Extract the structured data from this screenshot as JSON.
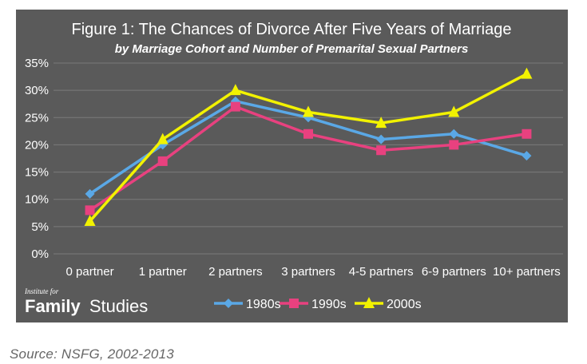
{
  "colors": {
    "background": "#5a5a5a",
    "text": "#ffffff",
    "grid": "#7a7a7a",
    "series_1980s": "#5aa8e6",
    "series_1990s": "#e8417f",
    "series_2000s": "#f2f200"
  },
  "branding": {
    "line1": "Institute for",
    "line2_bold": "Family",
    "line2_regular": "Studies"
  },
  "source": "Source: NSFG, 2002-2013",
  "chart_data": {
    "type": "line",
    "title": "Figure 1: The Chances of Divorce After Five Years of Marriage",
    "subtitle": "by Marriage Cohort and Number of Premarital Sexual Partners",
    "categories": [
      "0 partner",
      "1 partner",
      "2 partners",
      "3 partners",
      "4-5 partners",
      "6-9 partners",
      "10+ partners"
    ],
    "series": [
      {
        "name": "1980s",
        "values": [
          11,
          20,
          28,
          25,
          21,
          22,
          18
        ],
        "marker": "diamond"
      },
      {
        "name": "1990s",
        "values": [
          8,
          17,
          27,
          22,
          19,
          20,
          22
        ],
        "marker": "square"
      },
      {
        "name": "2000s",
        "values": [
          6,
          21,
          30,
          26,
          24,
          26,
          33
        ],
        "marker": "triangle"
      }
    ],
    "ylim": [
      0,
      35
    ],
    "yticks": [
      "0%",
      "5%",
      "10%",
      "15%",
      "20%",
      "25%",
      "30%",
      "35%"
    ],
    "y_unit": "%",
    "grid": true,
    "legend_position": "bottom"
  }
}
